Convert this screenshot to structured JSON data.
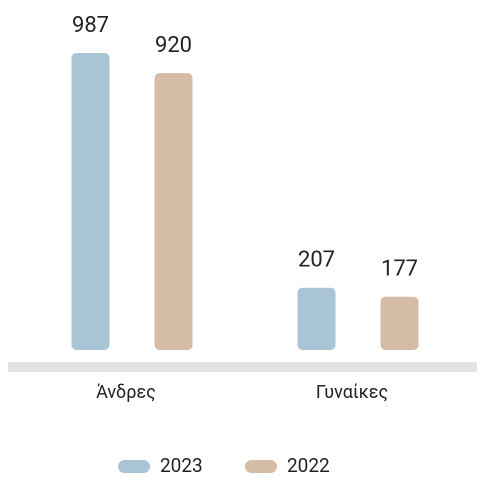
{
  "chart_data": {
    "type": "bar",
    "categories": [
      "Άνδρες",
      "Γυναίκες"
    ],
    "series": [
      {
        "name": "2023",
        "color": "#a9c4d4",
        "values": [
          987,
          207
        ]
      },
      {
        "name": "2022",
        "color": "#d4bca6",
        "values": [
          920,
          177
        ]
      }
    ]
  }
}
